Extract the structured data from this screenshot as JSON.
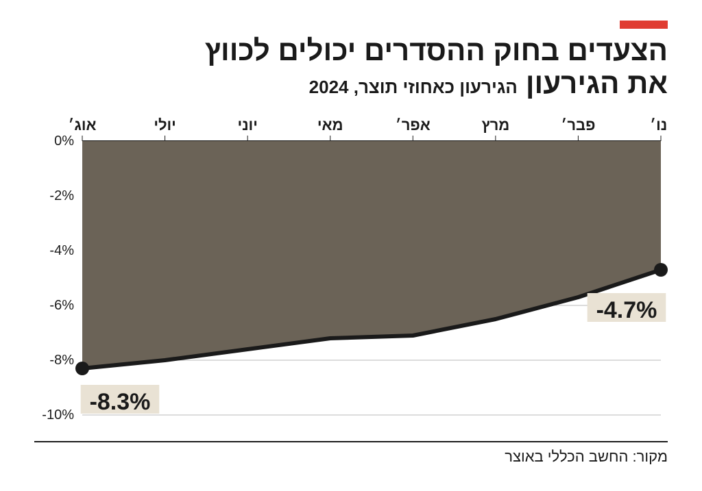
{
  "accent_color": "#e03c31",
  "title_line1": "הצעדים בחוק ההסדרים יכולים לכווץ",
  "title_line2": "את הגירעון",
  "subtitle": "הגירעון כאחוזי תוצר, 2024",
  "source": "מקור: החשב הכללי באוצר",
  "chart": {
    "type": "area-line",
    "background_color": "#ffffff",
    "area_fill": "#6b6357",
    "line_color": "#1a1a1a",
    "line_width": 6,
    "marker_color": "#1a1a1a",
    "marker_radius": 10,
    "grid_color": "#b8b8b8",
    "top_rule_color": "#1a1a1a",
    "xlabels": [
      "ינו׳",
      "פבר׳",
      "מרץ",
      "אפר׳",
      "מאי",
      "יוני",
      "יולי",
      "אוג׳"
    ],
    "ylim": [
      -10,
      0
    ],
    "ytick_step": 2,
    "yticks": [
      "0%",
      "-2%",
      "-4%",
      "-6%",
      "-8%",
      "-10%"
    ],
    "values": [
      -4.7,
      -5.7,
      -6.5,
      -7.1,
      -7.2,
      -7.6,
      -8.0,
      -8.3
    ],
    "endpoint_labels": {
      "first": "-4.7%",
      "last": "-8.3%"
    },
    "label_bg": "#e9e2d4",
    "label_fontsize": 34,
    "xlabel_fontsize": 22,
    "ylabel_fontsize": 20
  }
}
